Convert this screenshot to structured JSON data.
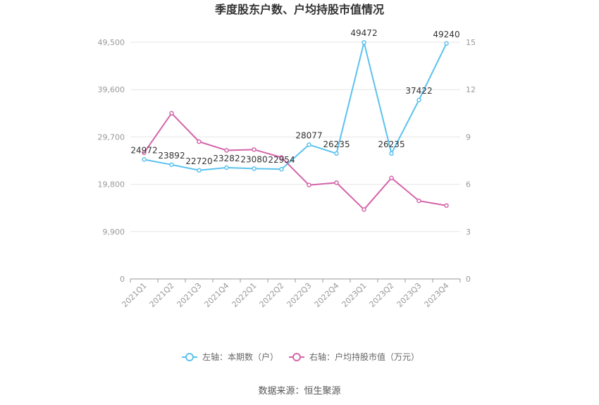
{
  "chart_data": {
    "type": "line",
    "title": "季度股东户数、户均持股市值情况",
    "categories": [
      "2021Q1",
      "2021Q2",
      "2021Q3",
      "2021Q4",
      "2022Q1",
      "2022Q2",
      "2022Q3",
      "2022Q4",
      "2023Q1",
      "2023Q2",
      "2023Q3",
      "2023Q4"
    ],
    "left_axis": {
      "ticks": [
        "0",
        "9,900",
        "19,800",
        "29,700",
        "39,600",
        "49,500"
      ],
      "min": 0,
      "max": 49500
    },
    "right_axis": {
      "ticks": [
        "0",
        "3",
        "6",
        "9",
        "12",
        "15"
      ],
      "min": 0,
      "max": 15
    },
    "series": [
      {
        "name": "左轴：本期数（户）",
        "axis": "left",
        "color": "#5bc2ee",
        "values": [
          24972,
          23892,
          22720,
          23282,
          23080,
          22954,
          28077,
          26235,
          49472,
          26235,
          37422,
          49240
        ],
        "labels": [
          "24972",
          "23892",
          "22720",
          "23282",
          "23080",
          "22954",
          "28077",
          "26235",
          "49472",
          "26235",
          "37422",
          "49240"
        ]
      },
      {
        "name": "右轴：户均持股市值（万元）",
        "axis": "right",
        "color": "#d465aa",
        "values": [
          8.0,
          10.5,
          8.7,
          8.15,
          8.2,
          7.7,
          5.95,
          6.1,
          4.4,
          6.4,
          4.95,
          4.65
        ]
      }
    ],
    "grid": true,
    "legend_position": "bottom"
  },
  "source": "数据来源：恒生聚源"
}
